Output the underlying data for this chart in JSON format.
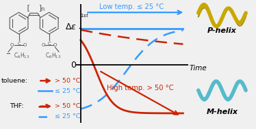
{
  "bg_color": "#f0f0f0",
  "red_color": "#cc2200",
  "blue_color": "#3399ff",
  "figsize": [
    3.74,
    1.89
  ],
  "dpi": 100,
  "low_temp_label": "Low temp. ≤ 25 °C",
  "high_temp_label": "High temp. > 50 °C",
  "time_label": "Time",
  "p_helix_label": "P-helix",
  "m_helix_label": "M-helix",
  "toluene_label": "toluene:",
  "thf_label": "THF:",
  "high_temp_legend": "> 50 °C",
  "low_temp_legend": "≤ 25 °C"
}
